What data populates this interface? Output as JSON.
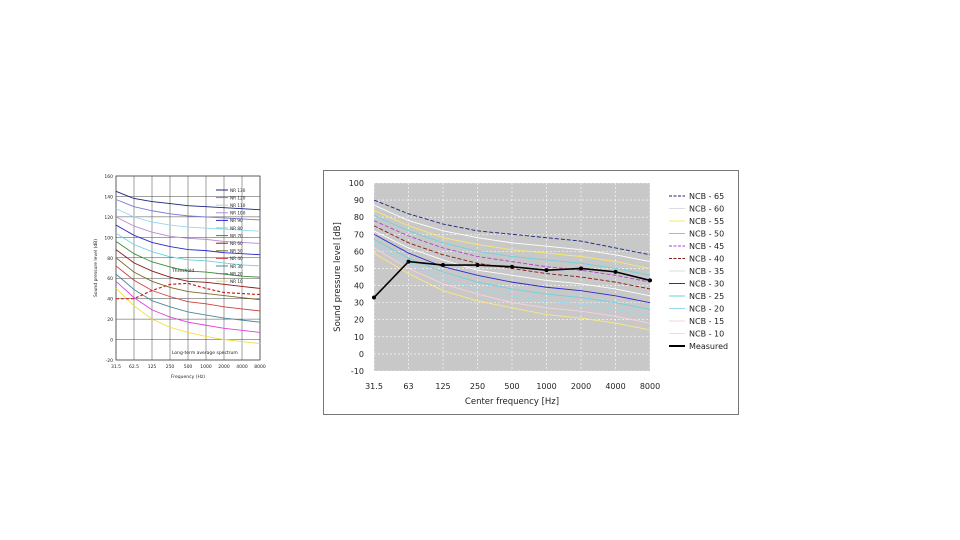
{
  "colors": {
    "plot_bg_right": "#c8c8c8",
    "measured": "#000000",
    "threshold": "#cc2222",
    "palette": [
      "#1a237e",
      "#ffffff",
      "#f7e96b",
      "#6ad3e0",
      "#8b1a1a",
      "#2a2ad0",
      "#b040d0",
      "#3a8f3a",
      "#f4f48c",
      "#9ad8f0",
      "#f8d0e0",
      "#ffe680",
      "#e040e0",
      "#f0e040"
    ]
  },
  "chart_data": [
    {
      "type": "line",
      "title": "",
      "xlabel": "Frequency (Hz)",
      "ylabel": "Sound pressure level (dB)",
      "x": [
        "31.5",
        "62.5",
        "125",
        "250",
        "500",
        "1000",
        "2000",
        "4000",
        "8000"
      ],
      "ylim": [
        -20,
        160
      ],
      "yticks": [
        "160",
        "140",
        "120",
        "100",
        "80",
        "60",
        "40",
        "20",
        "0",
        "-20"
      ],
      "grid": true,
      "legend_position": "top-right",
      "annotations": [
        "Threshold",
        "Long-term average spectrum"
      ],
      "series": [
        {
          "name": "NR 130",
          "color": "#1a237e",
          "values": [
            145,
            138,
            135,
            133,
            131,
            130,
            129,
            128,
            127
          ]
        },
        {
          "name": "NR 120",
          "color": "#7a7ad8",
          "values": [
            137,
            130,
            126,
            123,
            121,
            120,
            119,
            118,
            117
          ]
        },
        {
          "name": "NR 110",
          "color": "#9ad8f0",
          "values": [
            128,
            120,
            115,
            112,
            110,
            109,
            108,
            107,
            106
          ]
        },
        {
          "name": "NR 100",
          "color": "#b090d0",
          "values": [
            120,
            111,
            105,
            101,
            99,
            98,
            96,
            95,
            94
          ]
        },
        {
          "name": "NR 90",
          "color": "#2a2ad0",
          "values": [
            112,
            102,
            95,
            91,
            88,
            87,
            85,
            84,
            83
          ]
        },
        {
          "name": "NR 80",
          "color": "#6ad3e0",
          "values": [
            104,
            93,
            86,
            81,
            78,
            77,
            75,
            73,
            72
          ]
        },
        {
          "name": "NR 70",
          "color": "#3a8f3a",
          "values": [
            96,
            84,
            76,
            71,
            67,
            66,
            64,
            62,
            61
          ]
        },
        {
          "name": "NR 60",
          "color": "#8b1a1a",
          "values": [
            88,
            75,
            67,
            61,
            57,
            56,
            54,
            52,
            50
          ]
        },
        {
          "name": "NR 50",
          "color": "#7a6a2a",
          "values": [
            80,
            66,
            57,
            51,
            47,
            45,
            43,
            41,
            39
          ]
        },
        {
          "name": "NR 40",
          "color": "#d04040",
          "values": [
            72,
            58,
            48,
            42,
            37,
            35,
            32,
            30,
            28
          ]
        },
        {
          "name": "NR 30",
          "color": "#4a8a9a",
          "values": [
            64,
            49,
            38,
            32,
            27,
            24,
            21,
            19,
            17
          ]
        },
        {
          "name": "NR 20",
          "color": "#e040e0",
          "values": [
            57,
            41,
            29,
            22,
            17,
            14,
            11,
            9,
            7
          ]
        },
        {
          "name": "NR 10",
          "color": "#f0e040",
          "values": [
            50,
            33,
            20,
            12,
            7,
            3,
            0,
            -2,
            -4
          ]
        },
        {
          "name": "Threshold",
          "color": "#cc2222",
          "values": [
            40,
            40,
            48,
            54,
            55,
            50,
            46,
            45,
            44
          ]
        }
      ],
      "legend": [
        "NR 130",
        "NR 120",
        "NR 110",
        "NR 100",
        "NR 90",
        "NR 80",
        "NR 70",
        "NR 60",
        "NR 50",
        "NR 40",
        "NR 30",
        "NR 20",
        "NR 10"
      ]
    },
    {
      "type": "line",
      "title": "",
      "xlabel": "Center frequency [Hz]",
      "ylabel": "Sound pressure level [dB]",
      "x": [
        "31.5",
        "63",
        "125",
        "250",
        "500",
        "1000",
        "2000",
        "4000",
        "8000"
      ],
      "ylim": [
        -10,
        100
      ],
      "yticks": [
        "100",
        "90",
        "80",
        "70",
        "60",
        "50",
        "40",
        "30",
        "20",
        "10",
        "0",
        "-10"
      ],
      "grid": true,
      "legend_position": "right",
      "series": [
        {
          "name": "NCB - 65",
          "color": "#1a237e",
          "dash": true,
          "values": [
            90,
            82,
            76,
            72,
            70,
            68,
            66,
            62,
            58
          ]
        },
        {
          "name": "NCB - 60",
          "color": "#ffffff",
          "dash": false,
          "values": [
            87,
            78,
            72,
            68,
            65,
            63,
            61,
            58,
            54
          ]
        },
        {
          "name": "NCB - 55",
          "color": "#f7e96b",
          "dash": false,
          "values": [
            84,
            75,
            68,
            64,
            61,
            59,
            57,
            54,
            50
          ]
        },
        {
          "name": "NCB - 50",
          "color": "#6ad3e0",
          "dash": false,
          "values": [
            81,
            72,
            65,
            60,
            57,
            55,
            53,
            50,
            46
          ]
        },
        {
          "name": "NCB - 45",
          "color": "#b040d0",
          "dash": true,
          "values": [
            78,
            69,
            62,
            57,
            54,
            51,
            49,
            46,
            42
          ]
        },
        {
          "name": "NCB - 40",
          "color": "#8b1a1a",
          "dash": true,
          "values": [
            75,
            65,
            58,
            53,
            50,
            47,
            45,
            42,
            38
          ]
        },
        {
          "name": "NCB - 35",
          "color": "#ffffff",
          "dash": false,
          "values": [
            72,
            62,
            55,
            49,
            46,
            43,
            41,
            38,
            34
          ]
        },
        {
          "name": "NCB - 30",
          "color": "#2a2ad0",
          "dash": false,
          "values": [
            70,
            59,
            51,
            46,
            42,
            39,
            37,
            34,
            30
          ]
        },
        {
          "name": "NCB - 25",
          "color": "#6ad3e0",
          "dash": false,
          "values": [
            67,
            56,
            48,
            42,
            38,
            35,
            33,
            30,
            26
          ]
        },
        {
          "name": "NCB - 20",
          "color": "#9ad8f0",
          "dash": false,
          "values": [
            64,
            53,
            44,
            38,
            34,
            31,
            29,
            26,
            22
          ]
        },
        {
          "name": "NCB - 15",
          "color": "#f8d0e0",
          "dash": false,
          "values": [
            62,
            50,
            41,
            35,
            30,
            27,
            25,
            22,
            18
          ]
        },
        {
          "name": "NCB - 10",
          "color": "#ffe680",
          "dash": false,
          "values": [
            59,
            47,
            37,
            31,
            27,
            23,
            21,
            18,
            14
          ]
        },
        {
          "name": "Measured",
          "color": "#000000",
          "dash": false,
          "values": [
            33,
            54,
            52,
            52,
            51,
            49,
            50,
            48,
            43
          ]
        }
      ],
      "legend": [
        "NCB - 65",
        "NCB - 60",
        "NCB - 55",
        "NCB - 50",
        "NCB - 45",
        "NCB - 40",
        "NCB - 35",
        "NCB - 30",
        "NCB - 25",
        "NCB - 20",
        "NCB - 15",
        "NCB - 10",
        "Measured"
      ]
    }
  ]
}
